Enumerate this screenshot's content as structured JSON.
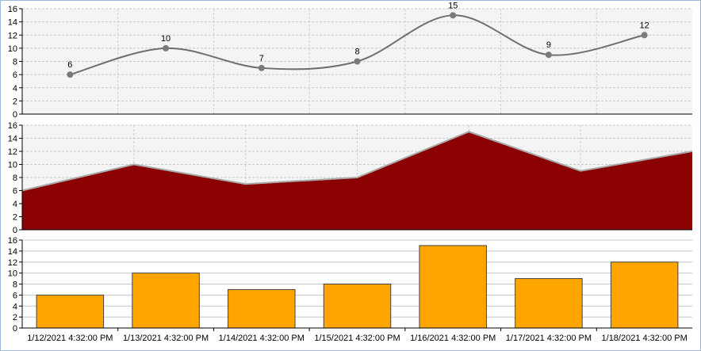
{
  "chart_data": [
    {
      "type": "line",
      "smooth": true,
      "title": "",
      "xlabel": "",
      "ylabel": "",
      "x": [
        "1/12/2021 4:32:00 PM",
        "1/13/2021 4:32:00 PM",
        "1/14/2021 4:32:00 PM",
        "1/15/2021 4:32:00 PM",
        "1/16/2021 4:32:00 PM",
        "1/17/2021 4:32:00 PM",
        "1/18/2021 4:32:00 PM"
      ],
      "values": [
        6,
        10,
        7,
        8,
        15,
        9,
        12
      ],
      "data_labels": [
        "6",
        "10",
        "7",
        "8",
        "15",
        "9",
        "12"
      ],
      "ylim": [
        0,
        16
      ],
      "yticks": [
        "0",
        "2",
        "4",
        "6",
        "8",
        "10",
        "12",
        "14",
        "16"
      ],
      "grid": true,
      "background": "#f4f4f4",
      "line_color": "#6e6e6e",
      "marker_color": "#7a7a7a"
    },
    {
      "type": "area",
      "title": "",
      "xlabel": "",
      "ylabel": "",
      "x": [
        "1/12/2021 4:32:00 PM",
        "1/13/2021 4:32:00 PM",
        "1/14/2021 4:32:00 PM",
        "1/15/2021 4:32:00 PM",
        "1/16/2021 4:32:00 PM",
        "1/17/2021 4:32:00 PM",
        "1/18/2021 4:32:00 PM"
      ],
      "values": [
        6,
        10,
        7,
        8,
        15,
        9,
        12
      ],
      "ylim": [
        0,
        16
      ],
      "yticks": [
        "0",
        "2",
        "4",
        "6",
        "8",
        "10",
        "12",
        "14",
        "16"
      ],
      "grid": true,
      "background": "#f4f4f4",
      "fill_color": "#8b0000",
      "outline_color": "#a9a9a9"
    },
    {
      "type": "bar",
      "title": "",
      "xlabel": "",
      "ylabel": "",
      "categories": [
        "1/12/2021 4:32:00 PM",
        "1/13/2021 4:32:00 PM",
        "1/14/2021 4:32:00 PM",
        "1/15/2021 4:32:00 PM",
        "1/16/2021 4:32:00 PM",
        "1/17/2021 4:32:00 PM",
        "1/18/2021 4:32:00 PM"
      ],
      "values": [
        6,
        10,
        7,
        8,
        15,
        9,
        12
      ],
      "ylim": [
        0,
        16
      ],
      "yticks": [
        "0",
        "2",
        "4",
        "6",
        "8",
        "10",
        "12",
        "14",
        "16"
      ],
      "grid": true,
      "background": "#ffffff",
      "bar_color": "#ffa500",
      "bar_border": "#444444"
    }
  ]
}
